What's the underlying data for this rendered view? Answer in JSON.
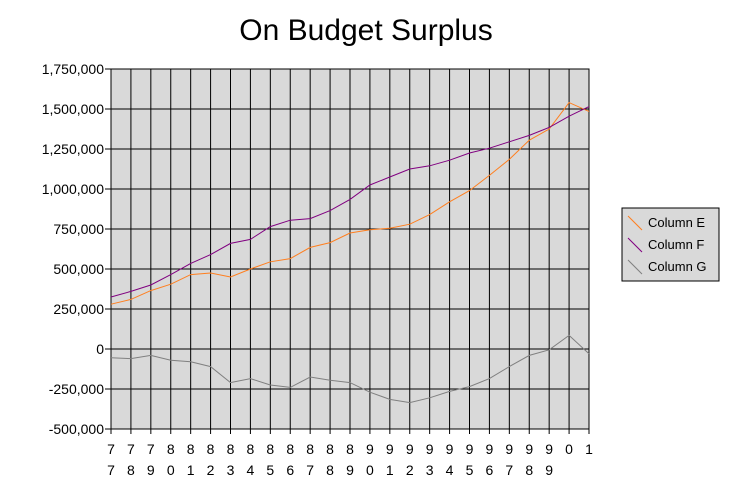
{
  "chart_data": {
    "type": "line",
    "title": "On Budget Surplus",
    "xlabel": "",
    "ylabel": "",
    "ylim": [
      -500000,
      1750000
    ],
    "yticks": [
      -500000,
      -250000,
      0,
      250000,
      500000,
      750000,
      1000000,
      1250000,
      1500000,
      1750000
    ],
    "ytick_labels": [
      "-500,000",
      "-250,000",
      "0",
      "250,000",
      "500,000",
      "750,000",
      "1,000,000",
      "1,250,000",
      "1,500,000",
      "1,750,000"
    ],
    "categories": [
      "77",
      "78",
      "79",
      "80",
      "81",
      "82",
      "83",
      "84",
      "85",
      "86",
      "87",
      "88",
      "89",
      "90",
      "91",
      "92",
      "93",
      "94",
      "95",
      "96",
      "97",
      "98",
      "99",
      "0",
      "1"
    ],
    "grid": true,
    "background": "#d9d9d9",
    "legend_position": "right",
    "series": [
      {
        "name": "Column E",
        "color": "#ff7f1f",
        "values": [
          280000,
          310000,
          365000,
          405000,
          465000,
          475000,
          450000,
          500000,
          545000,
          565000,
          635000,
          665000,
          725000,
          745000,
          755000,
          780000,
          840000,
          920000,
          990000,
          1085000,
          1185000,
          1305000,
          1375000,
          1540000,
          1485000
        ]
      },
      {
        "name": "Column F",
        "color": "#800080",
        "values": [
          325000,
          360000,
          400000,
          465000,
          535000,
          590000,
          660000,
          685000,
          765000,
          805000,
          815000,
          865000,
          935000,
          1025000,
          1075000,
          1125000,
          1145000,
          1180000,
          1225000,
          1255000,
          1295000,
          1335000,
          1385000,
          1455000,
          1515000
        ]
      },
      {
        "name": "Column G",
        "color": "#808080",
        "values": [
          -55000,
          -60000,
          -40000,
          -70000,
          -80000,
          -110000,
          -210000,
          -185000,
          -225000,
          -240000,
          -175000,
          -195000,
          -210000,
          -270000,
          -315000,
          -335000,
          -305000,
          -265000,
          -235000,
          -185000,
          -110000,
          -40000,
          -5000,
          85000,
          -30000
        ]
      }
    ]
  }
}
